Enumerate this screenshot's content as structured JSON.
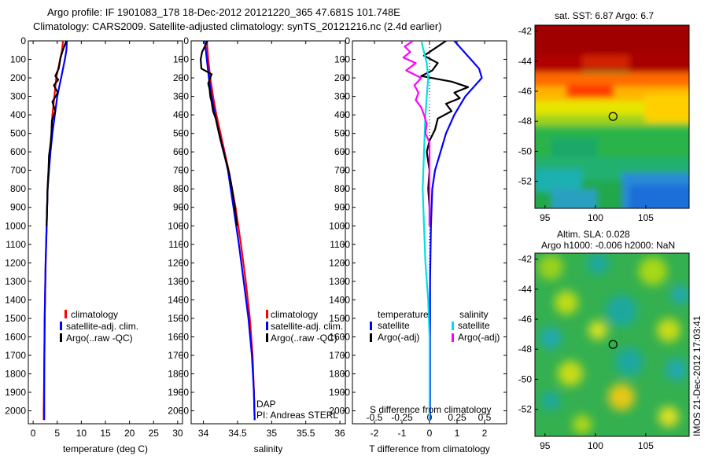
{
  "title_line1": "Argo profile: IF 1901083_178 18-Dec-2012 20121220_365 47.681S 101.748E",
  "title_line2": "Climatology: CARS2009. Satellite-adjusted climatology: synTS_20121216.nc (2.4d earlier)",
  "colors": {
    "climatology": "#ff0000",
    "satellite": "#0000ff",
    "argo": "#000000",
    "cyan": "#00e0e0",
    "magenta": "#ff00ff"
  },
  "chart_data": [
    {
      "type": "line",
      "xlabel": "temperature (deg C)",
      "xticks": [
        0,
        5,
        10,
        15,
        20,
        25,
        30
      ],
      "xlim": [
        -1,
        31
      ],
      "yticks": [
        0,
        100,
        200,
        300,
        400,
        500,
        600,
        700,
        800,
        900,
        1000,
        1100,
        1200,
        1300,
        1400,
        1500,
        1600,
        1700,
        1800,
        1900,
        2000
      ],
      "ylim": [
        0,
        2070
      ],
      "y_reversed": true,
      "legend": [
        "climatology",
        "satellite-adj. clim.",
        "Argo(..raw -QC)"
      ],
      "series": [
        {
          "name": "climatology",
          "color": "#ff0000",
          "depth": [
            0,
            50,
            100,
            150,
            200,
            250,
            300,
            400,
            500,
            600,
            700,
            800,
            1000,
            1200,
            1500,
            1800,
            2000,
            2050
          ],
          "values": [
            6.2,
            6.0,
            5.6,
            5.2,
            4.8,
            4.6,
            4.4,
            4.0,
            3.8,
            3.5,
            3.2,
            3.0,
            2.8,
            2.6,
            2.4,
            2.3,
            2.2,
            2.2
          ]
        },
        {
          "name": "satellite-adj. clim.",
          "color": "#0000ff",
          "depth": [
            0,
            50,
            100,
            150,
            200,
            250,
            300,
            400,
            500,
            600,
            700,
            800,
            1000,
            1200,
            1500,
            1800,
            2000,
            2050
          ],
          "values": [
            7.0,
            6.9,
            6.6,
            6.2,
            5.8,
            5.4,
            5.0,
            4.5,
            4.0,
            3.6,
            3.3,
            3.0,
            2.8,
            2.6,
            2.4,
            2.3,
            2.3,
            2.3
          ]
        },
        {
          "name": "Argo(..raw -QC)",
          "color": "#000000",
          "depth": [
            0,
            40,
            90,
            150,
            190,
            210,
            240,
            280,
            330,
            380,
            430,
            500,
            560,
            620,
            700,
            800,
            1000
          ],
          "values": [
            6.9,
            6.3,
            5.7,
            5.3,
            4.6,
            5.2,
            4.3,
            5.1,
            4.0,
            4.6,
            3.9,
            3.8,
            3.6,
            3.3,
            3.2,
            3.0,
            2.8
          ]
        }
      ]
    },
    {
      "type": "line",
      "xlabel": "salinity",
      "xticks": [
        34,
        34.5,
        35,
        35.5,
        36
      ],
      "xlim": [
        33.82,
        36.08
      ],
      "yticks": [
        0,
        100,
        200,
        300,
        400,
        500,
        600,
        700,
        800,
        900,
        1000,
        1100,
        1200,
        1300,
        1400,
        1500,
        1600,
        1700,
        1800,
        1900,
        2000
      ],
      "ylim": [
        0,
        2070
      ],
      "y_reversed": true,
      "legend": [
        "climatology",
        "satellite-adj. clim.",
        "Argo(..raw -QC)"
      ],
      "annotations": [
        "DAP",
        "PI: Andreas STERL"
      ],
      "series": [
        {
          "name": "climatology",
          "color": "#ff0000",
          "depth": [
            0,
            100,
            200,
            300,
            400,
            500,
            600,
            700,
            900,
            1100,
            1300,
            1500,
            1700,
            1900,
            2050
          ],
          "values": [
            34.05,
            34.07,
            34.1,
            34.14,
            34.19,
            34.25,
            34.31,
            34.37,
            34.47,
            34.55,
            34.62,
            34.68,
            34.72,
            34.74,
            34.75
          ]
        },
        {
          "name": "satellite-adj. clim.",
          "color": "#0000ff",
          "depth": [
            0,
            100,
            200,
            300,
            400,
            500,
            600,
            700,
            900,
            1100,
            1300,
            1500,
            1700,
            1900,
            2050
          ],
          "values": [
            34.02,
            34.05,
            34.08,
            34.12,
            34.17,
            34.23,
            34.3,
            34.36,
            34.44,
            34.52,
            34.59,
            34.66,
            34.71,
            34.74,
            34.75
          ]
        },
        {
          "name": "Argo(..raw -QC)",
          "color": "#000000",
          "depth": [
            0,
            30,
            60,
            100,
            150,
            180,
            230,
            260,
            300,
            330,
            380,
            420,
            470,
            520,
            580,
            650,
            720,
            800,
            900,
            1000
          ],
          "values": [
            34.06,
            34.02,
            33.98,
            33.96,
            33.97,
            34.12,
            34.07,
            34.09,
            34.1,
            34.12,
            34.14,
            34.18,
            34.21,
            34.24,
            34.28,
            34.33,
            34.38,
            34.42,
            34.46,
            34.49
          ]
        }
      ]
    },
    {
      "type": "line",
      "xlabel": "T difference from climatology",
      "xlabel_top": "S difference from climatology",
      "xticks": [
        -2,
        -1,
        0,
        1,
        2
      ],
      "xlim": [
        -2.8,
        2.8
      ],
      "xticks_top": [
        -0.5,
        -0.25,
        0,
        0.25,
        0.5
      ],
      "xticks_top_labels": [
        "-0.5",
        "-0.25",
        "0",
        "0.25",
        "0.5"
      ],
      "yticks": [
        0,
        100,
        200,
        300,
        400,
        500,
        600,
        700,
        800,
        900,
        1000,
        1100,
        1200,
        1300,
        1400,
        1500,
        1600,
        1700,
        1800,
        1900,
        2000
      ],
      "ylim": [
        0,
        2070
      ],
      "y_reversed": true,
      "legend_titles": [
        "temperature",
        "salinity"
      ],
      "legend": [
        "satellite",
        "Argo(-adj)",
        "satellite",
        "Argo(-adj)"
      ],
      "series": [
        {
          "name": "temperature satellite",
          "color": "#0000ff",
          "depth": [
            0,
            50,
            100,
            150,
            200,
            250,
            300,
            350,
            400,
            500,
            600,
            700,
            800,
            1000,
            1300,
            1600,
            2050
          ],
          "values": [
            0.9,
            1.2,
            1.5,
            1.8,
            1.9,
            1.6,
            1.3,
            1.1,
            0.9,
            0.6,
            0.4,
            0.2,
            0.1,
            0.05,
            0.02,
            0.02,
            0.02
          ]
        },
        {
          "name": "temperature Argo(-adj)",
          "color": "#000000",
          "depth": [
            0,
            40,
            80,
            120,
            160,
            190,
            220,
            250,
            280,
            310,
            340,
            380,
            420,
            480,
            540,
            600,
            700,
            800,
            900,
            1000
          ],
          "values": [
            0.6,
            0.2,
            -0.2,
            0.3,
            0.1,
            -0.3,
            0.8,
            1.4,
            0.9,
            1.1,
            0.6,
            0.8,
            0.3,
            0.2,
            0.0,
            -0.1,
            0.0,
            -0.05,
            0.0,
            0.0
          ]
        },
        {
          "name": "salinity satellite",
          "color": "#00e0e0",
          "depth": [
            0,
            60,
            120,
            200,
            300,
            400,
            600,
            800,
            1000,
            1200,
            1400,
            1600,
            1800,
            2050
          ],
          "values": [
            -0.3,
            -0.2,
            -0.1,
            -0.05,
            -0.1,
            -0.15,
            -0.2,
            -0.25,
            -0.2,
            -0.15,
            -0.05,
            0.0,
            0.0,
            0.0
          ]
        },
        {
          "name": "salinity Argo(-adj)",
          "color": "#ff00ff",
          "depth": [
            0,
            30,
            60,
            90,
            120,
            160,
            200,
            240,
            280,
            320,
            360,
            400,
            450,
            500,
            550,
            600,
            700,
            800,
            1000
          ],
          "values": [
            -0.6,
            -0.9,
            -0.7,
            -0.95,
            -0.5,
            -0.85,
            -0.3,
            -0.55,
            -0.4,
            -0.5,
            -0.3,
            -0.2,
            -0.1,
            -0.15,
            0.0,
            0.0,
            0.0,
            0.0,
            0.0
          ]
        }
      ]
    }
  ],
  "maps": [
    {
      "title": "sat. SST: 6.87 Argo: 6.7",
      "yticks": [
        -42,
        -44,
        -46,
        -48,
        -50,
        -52
      ],
      "xticks": [
        95,
        100,
        105
      ],
      "marker": {
        "lon": 101.748,
        "lat": -47.681
      }
    },
    {
      "title_line1": "Altim. SLA: 0.028",
      "title_line2": "Argo h1000: -0.006 h2000: NaN",
      "yticks": [
        -42,
        -44,
        -46,
        -48,
        -50,
        -52
      ],
      "xticks": [
        95,
        100,
        105
      ],
      "marker": {
        "lon": 101.748,
        "lat": -47.681
      },
      "side_label": "IMOS 21-Dec-2012 17:03:41"
    }
  ]
}
